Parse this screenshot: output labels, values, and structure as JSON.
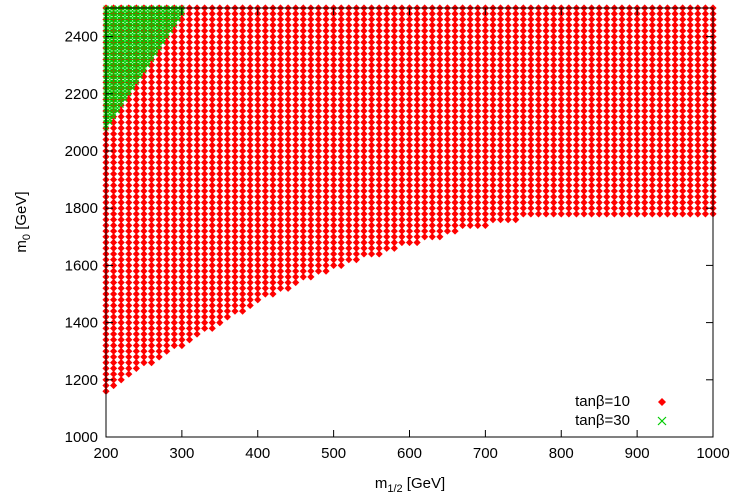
{
  "chart_data": {
    "type": "scatter",
    "title": "",
    "x_axis": {
      "label_main": "m",
      "label_sub": "1/2",
      "label_unit": " [GeV]",
      "range": [
        200,
        1000
      ],
      "ticks": [
        200,
        300,
        400,
        500,
        600,
        700,
        800,
        900,
        1000
      ],
      "tick_labels": [
        "200",
        "300",
        "400",
        "500",
        "600",
        "700",
        "800",
        "900",
        "1000"
      ]
    },
    "y_axis": {
      "label_main": "m",
      "label_sub": "0",
      "label_unit": " [GeV]",
      "range": [
        1000,
        2500
      ],
      "ticks": [
        1000,
        1200,
        1400,
        1600,
        1800,
        2000,
        2200,
        2400
      ],
      "tick_labels": [
        "1000",
        "1200",
        "1400",
        "1600",
        "1800",
        "2000",
        "2200",
        "2400"
      ]
    },
    "grid": false,
    "legend_position": "bottom-right",
    "grid_step": {
      "x": 10,
      "y": 20
    },
    "series": [
      {
        "name": "tanβ=10",
        "marker": "diamond",
        "color": "#ff0000",
        "description": "grid points allowed for m0 at or above the lower boundary",
        "lower_boundary": {
          "x": [
            200,
            210,
            220,
            240,
            260,
            280,
            300,
            320,
            340,
            360,
            380,
            400,
            420,
            440,
            460,
            480,
            500,
            520,
            540,
            560,
            580,
            600,
            620,
            640,
            660,
            680,
            700,
            720,
            740,
            760,
            780,
            800,
            820,
            840,
            860,
            880,
            900,
            920,
            940,
            960,
            980,
            1000
          ],
          "m0_min": [
            1150,
            1170,
            1190,
            1230,
            1260,
            1290,
            1320,
            1350,
            1380,
            1410,
            1440,
            1470,
            1500,
            1520,
            1550,
            1570,
            1590,
            1610,
            1630,
            1640,
            1660,
            1670,
            1690,
            1700,
            1720,
            1730,
            1740,
            1750,
            1760,
            1780,
            1780,
            1780,
            1780,
            1780,
            1780,
            1780,
            1780,
            1780,
            1780,
            1780,
            1780,
            1770
          ]
        }
      },
      {
        "name": "tanβ=30",
        "marker": "cross",
        "color": "#00cc00",
        "description": "grid points in the upper-left corner",
        "boundary": {
          "x": [
            200,
            220,
            240,
            260,
            280,
            300
          ],
          "m0_min": [
            2080,
            2160,
            2240,
            2320,
            2400,
            2480
          ]
        }
      }
    ]
  }
}
